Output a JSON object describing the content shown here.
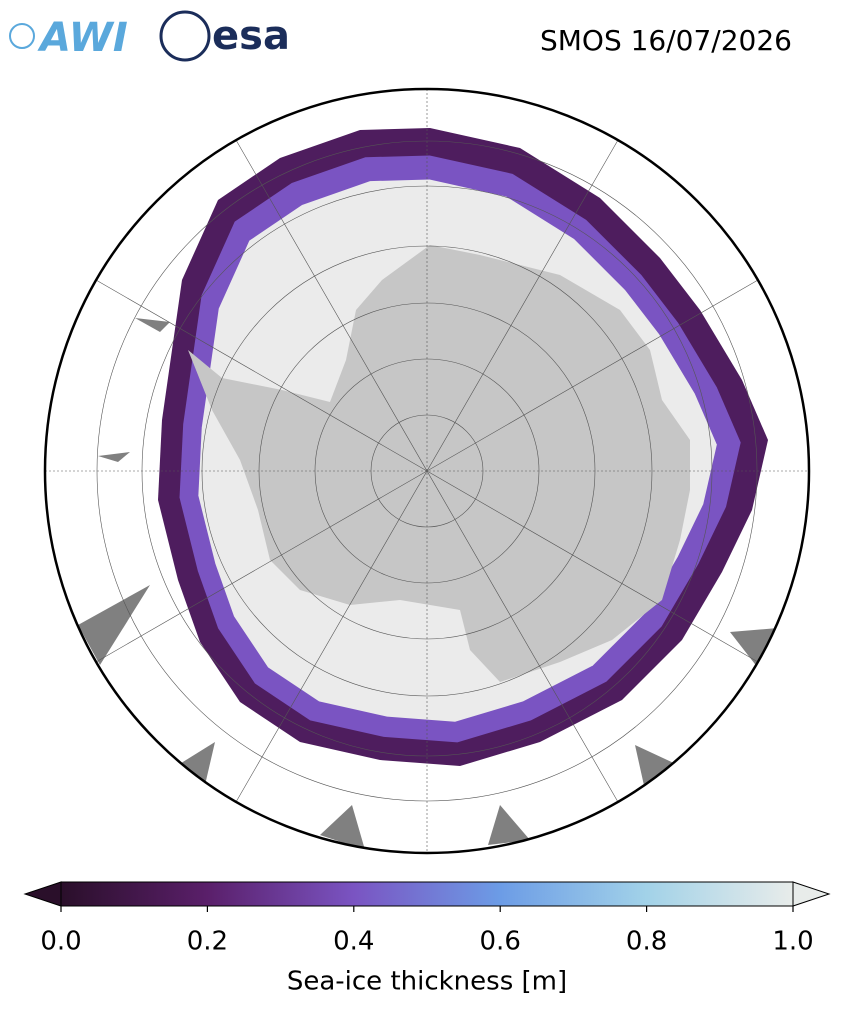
{
  "header": {
    "title": "SMOS 16/07/2026"
  },
  "logos": {
    "awi": "AWI",
    "esa": "esa"
  },
  "colorbar": {
    "label": "Sea-ice thickness [m]",
    "lim": [
      0,
      1
    ],
    "ticks": [
      {
        "value": 0,
        "label": "0.0"
      },
      0.2,
      0.4,
      0.6,
      0.8,
      {
        "value": 1,
        "label": "1.0"
      }
    ],
    "colormap": [
      "#2a0f2a",
      "#5a1f6a",
      "#7a54c2",
      "#6c9ce6",
      "#a2d2e8",
      "#e8ecea"
    ],
    "extend": "both"
  }
}
